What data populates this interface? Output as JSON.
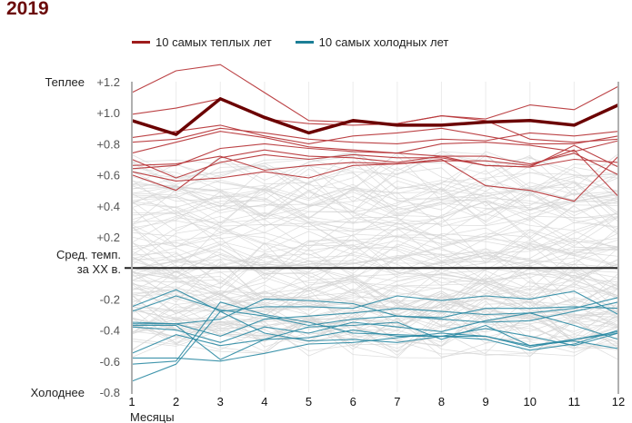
{
  "chart_data": {
    "type": "line",
    "title": "2019",
    "xlabel": "Месяцы",
    "ylabel": "",
    "x": [
      1,
      2,
      3,
      4,
      5,
      6,
      7,
      8,
      9,
      10,
      11,
      12
    ],
    "ylim": [
      -0.8,
      1.2
    ],
    "yticks": [
      {
        "value": 1.2,
        "label": "+1.2"
      },
      {
        "value": 1.0,
        "label": "+1.0"
      },
      {
        "value": 0.8,
        "label": "+0.8"
      },
      {
        "value": 0.6,
        "label": "+0.6"
      },
      {
        "value": 0.4,
        "label": "+0.4"
      },
      {
        "value": 0.2,
        "label": "+0.2"
      },
      {
        "value": -0.2,
        "label": "-0.2"
      },
      {
        "value": -0.4,
        "label": "-0.4"
      },
      {
        "value": -0.6,
        "label": "-0.6"
      },
      {
        "value": -0.8,
        "label": "-0.8"
      }
    ],
    "ytop_label": "Теплее",
    "ybottom_label": "Холоднее",
    "baseline_label": [
      "Сред. темп.",
      "за XX в."
    ],
    "grid": "vertical",
    "legend": {
      "placement": "top",
      "items": [
        {
          "label": "10 самых теплых лет",
          "color": "#9e1b1b"
        },
        {
          "label": "10 самых холодных лет",
          "color": "#1b7e96"
        }
      ]
    },
    "colors": {
      "highlight": "#6b0000",
      "warm": "#b8393c",
      "cold": "#2b8aa3",
      "other": "#d4d4d4",
      "baseline": "#222222"
    },
    "highlight_series": {
      "name": "2019",
      "values": [
        0.95,
        0.86,
        1.09,
        0.97,
        0.87,
        0.95,
        0.92,
        0.92,
        0.94,
        0.95,
        0.92,
        1.05
      ]
    },
    "warm_series": [
      {
        "values": [
          1.13,
          1.27,
          1.31,
          1.13,
          0.95,
          0.94,
          0.93,
          0.98,
          0.95,
          0.83,
          0.81,
          0.83
        ]
      },
      {
        "values": [
          0.99,
          1.03,
          1.09,
          0.96,
          0.93,
          0.92,
          0.93,
          0.98,
          0.96,
          1.05,
          1.02,
          1.17
        ]
      },
      {
        "values": [
          0.84,
          0.88,
          0.92,
          0.85,
          0.8,
          0.85,
          0.87,
          0.9,
          0.85,
          0.8,
          0.8,
          0.85
        ]
      },
      {
        "values": [
          0.81,
          0.83,
          0.9,
          0.87,
          0.83,
          0.81,
          0.8,
          0.83,
          0.82,
          0.87,
          0.85,
          0.88
        ]
      },
      {
        "values": [
          0.74,
          0.81,
          0.88,
          0.84,
          0.78,
          0.76,
          0.74,
          0.8,
          0.81,
          0.79,
          0.75,
          0.82
        ]
      },
      {
        "values": [
          0.64,
          0.66,
          0.77,
          0.8,
          0.77,
          0.75,
          0.74,
          0.72,
          0.72,
          0.67,
          0.74,
          0.6
        ]
      },
      {
        "values": [
          0.7,
          0.58,
          0.68,
          0.73,
          0.7,
          0.73,
          0.71,
          0.71,
          0.66,
          0.65,
          0.79,
          0.65
        ]
      },
      {
        "values": [
          0.6,
          0.5,
          0.71,
          0.76,
          0.72,
          0.71,
          0.68,
          0.72,
          0.66,
          0.65,
          0.7,
          0.68
        ]
      },
      {
        "values": [
          0.62,
          0.56,
          0.58,
          0.62,
          0.58,
          0.66,
          0.67,
          0.7,
          0.53,
          0.5,
          0.43,
          0.72
        ]
      },
      {
        "values": [
          0.66,
          0.67,
          0.72,
          0.63,
          0.66,
          0.68,
          0.67,
          0.69,
          0.69,
          0.66,
          0.76,
          0.46
        ]
      }
    ],
    "cold_series": [
      {
        "values": [
          -0.25,
          -0.14,
          -0.28,
          -0.25,
          -0.25,
          -0.26,
          -0.18,
          -0.21,
          -0.18,
          -0.2,
          -0.15,
          -0.3
        ]
      },
      {
        "values": [
          -0.28,
          -0.18,
          -0.27,
          -0.31,
          -0.37,
          -0.33,
          -0.31,
          -0.33,
          -0.35,
          -0.34,
          -0.28,
          -0.22
        ]
      },
      {
        "values": [
          -0.35,
          -0.36,
          -0.33,
          -0.2,
          -0.21,
          -0.23,
          -0.31,
          -0.32,
          -0.26,
          -0.26,
          -0.25,
          -0.26
        ]
      },
      {
        "values": [
          -0.37,
          -0.37,
          -0.59,
          -0.46,
          -0.38,
          -0.37,
          -0.35,
          -0.46,
          -0.37,
          -0.5,
          -0.46,
          -0.42
        ]
      },
      {
        "values": [
          -0.38,
          -0.4,
          -0.48,
          -0.38,
          -0.42,
          -0.35,
          -0.38,
          -0.41,
          -0.34,
          -0.29,
          -0.37,
          -0.46
        ]
      },
      {
        "values": [
          -0.55,
          -0.43,
          -0.5,
          -0.46,
          -0.45,
          -0.4,
          -0.44,
          -0.44,
          -0.39,
          -0.44,
          -0.5,
          -0.42
        ]
      },
      {
        "values": [
          -0.58,
          -0.58,
          -0.6,
          -0.55,
          -0.49,
          -0.48,
          -0.45,
          -0.42,
          -0.44,
          -0.51,
          -0.46,
          -0.41
        ]
      },
      {
        "values": [
          -0.62,
          -0.6,
          -0.22,
          -0.3,
          -0.35,
          -0.42,
          -0.43,
          -0.44,
          -0.44,
          -0.5,
          -0.47,
          -0.52
        ]
      },
      {
        "values": [
          -0.73,
          -0.62,
          -0.28,
          -0.42,
          -0.47,
          -0.46,
          -0.48,
          -0.44,
          -0.46,
          -0.53,
          -0.49,
          -0.4
        ]
      },
      {
        "values": [
          -0.36,
          -0.36,
          -0.44,
          -0.33,
          -0.31,
          -0.29,
          -0.26,
          -0.28,
          -0.3,
          -0.29,
          -0.26,
          -0.19
        ]
      }
    ],
    "background_series_note": "approx. 120 other years shown in light grey"
  }
}
